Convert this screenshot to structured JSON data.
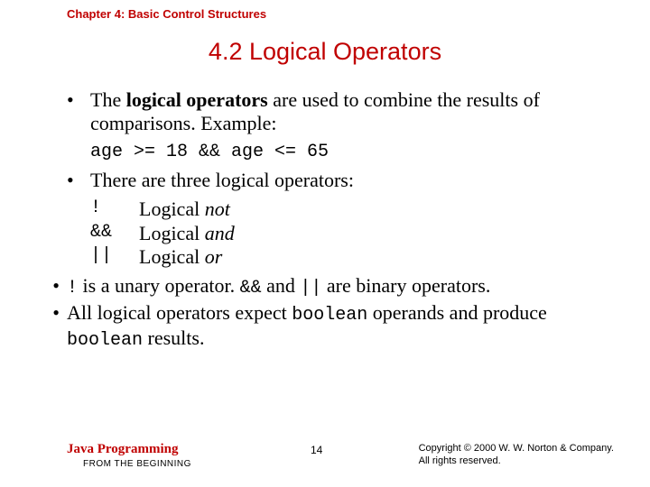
{
  "chapter_header": "Chapter 4: Basic Control Structures",
  "title": "4.2   Logical Operators",
  "bullets": {
    "b1_pre": "The ",
    "b1_bold": "logical operators",
    "b1_post": " are used to combine the results of comparisons. Example:",
    "code_example": "age >= 18 && age <= 65",
    "b2": "There are three logical operators:",
    "ops": {
      "r1_sym": "!",
      "r1_word": "Logical ",
      "r1_ital": "not",
      "r2_sym": "&&",
      "r2_word": "Logical ",
      "r2_ital": "and",
      "r3_sym": "||",
      "r3_word": "Logical ",
      "r3_ital": "or"
    },
    "b3_m1": "!",
    "b3_t1": " is a unary operator. ",
    "b3_m2": "&&",
    "b3_t2": " and ",
    "b3_m3": "||",
    "b3_t3": " are binary operators.",
    "b4_t1": "All logical operators expect ",
    "b4_m1": "boolean",
    "b4_t2": " operands and produce ",
    "b4_m2": "boolean",
    "b4_t3": " results."
  },
  "footer": {
    "title": "Java Programming",
    "sub": "FROM THE BEGINNING",
    "page": "14",
    "copy1": "Copyright © 2000 W. W. Norton & Company.",
    "copy2": "All rights reserved."
  }
}
